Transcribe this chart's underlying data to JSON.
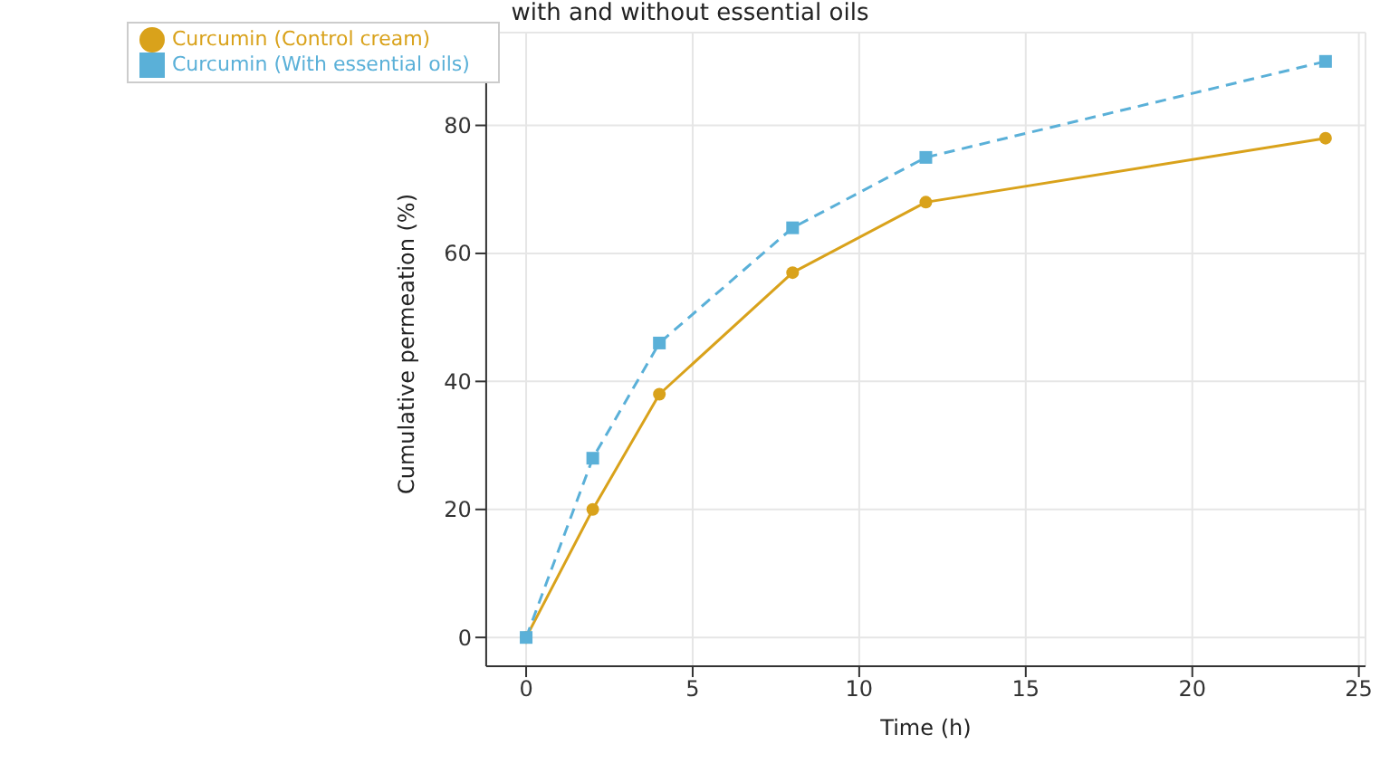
{
  "chart_data": {
    "type": "line",
    "title": "with and without essential oils",
    "xlabel": "Time (h)",
    "ylabel": "Cumulative permeation (%)",
    "x": [
      0,
      2,
      4,
      8,
      12,
      24
    ],
    "series": [
      {
        "name": "Curcumin (Control cream)",
        "color": "#d9a21b",
        "values": [
          0,
          20,
          38,
          57,
          68,
          78
        ],
        "marker": "circle",
        "line_style": "solid"
      },
      {
        "name": "Curcumin (With essential oils)",
        "color": "#5ab0d8",
        "values": [
          0,
          28,
          46,
          64,
          75,
          90
        ],
        "marker": "square",
        "line_style": "dashed"
      }
    ],
    "xlim": [
      -1.2,
      25.2
    ],
    "xticks": [
      0,
      5,
      10,
      15,
      20,
      25
    ],
    "ylim": [
      -4.5,
      94.5
    ],
    "yticks": [
      0,
      20,
      40,
      60,
      80
    ],
    "grid": true,
    "legend": "top left"
  }
}
